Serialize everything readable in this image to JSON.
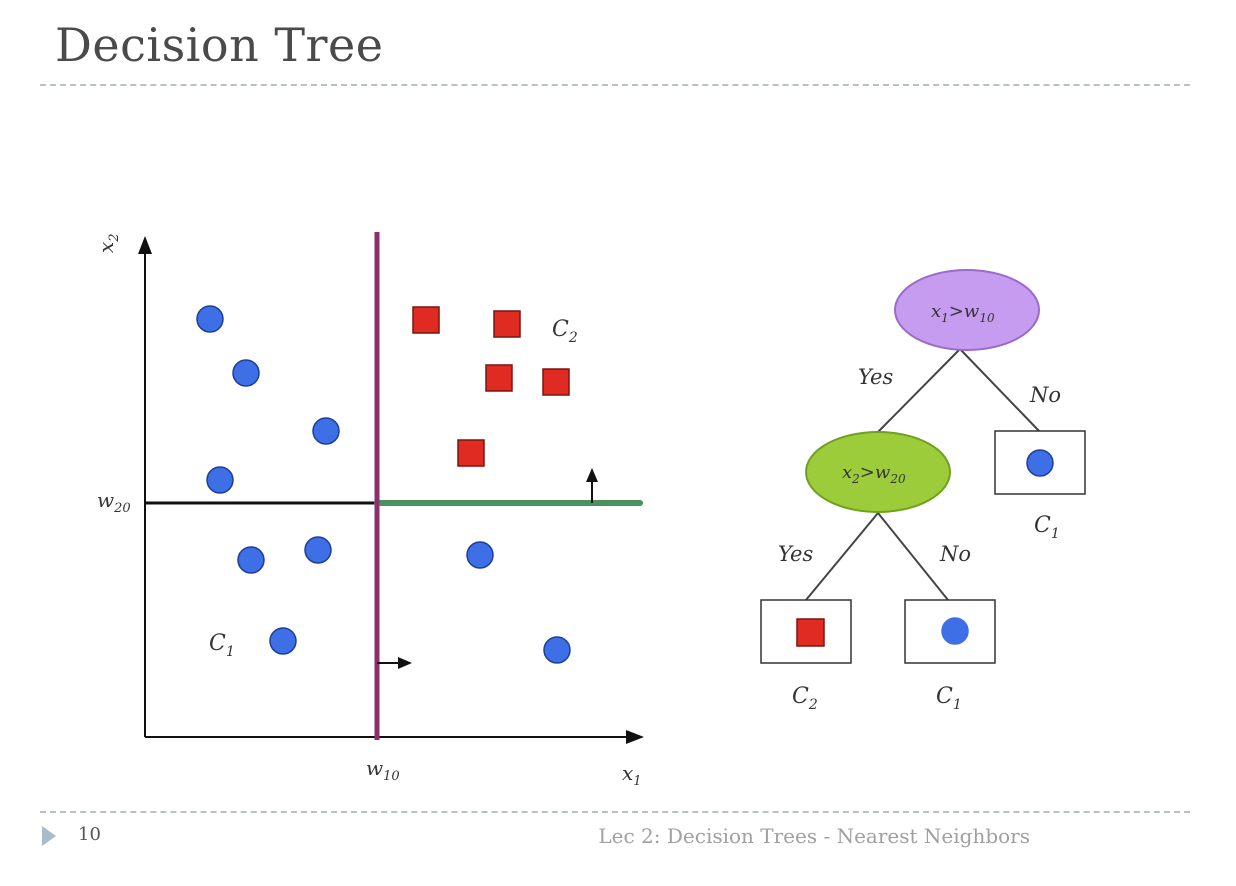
{
  "slide": {
    "title": "Decision Tree",
    "page_number": "10",
    "footer": "Lec 2: Decision Trees - Nearest Neighbors"
  },
  "plot": {
    "x_axis_label": "x",
    "x_axis_sub": "1",
    "y_axis_label": "x",
    "y_axis_sub": "2",
    "x_threshold_label": "w",
    "x_threshold_sub": "10",
    "y_threshold_label": "w",
    "y_threshold_sub": "20",
    "class1_label": "C",
    "class1_sub": "1",
    "class2_label": "C",
    "class2_sub": "2",
    "colors": {
      "circle": "#3f6fe6",
      "square": "#e02b22",
      "x_split": "#8b2f6e",
      "y_split_left": "#111111",
      "y_split_right": "#4a9060"
    }
  },
  "tree": {
    "root": {
      "var": "x",
      "var_sub": "1",
      "op": ">",
      "thr": "w",
      "thr_sub": "10",
      "color": "#c59cf0"
    },
    "child": {
      "var": "x",
      "var_sub": "2",
      "op": ">",
      "thr": "w",
      "thr_sub": "20",
      "color": "#9ccc3a"
    },
    "yes_label": "Yes",
    "no_label": "No",
    "leaf_c1_label": "C",
    "leaf_c1_sub": "1",
    "leaf_c2_label": "C",
    "leaf_c2_sub": "2"
  }
}
